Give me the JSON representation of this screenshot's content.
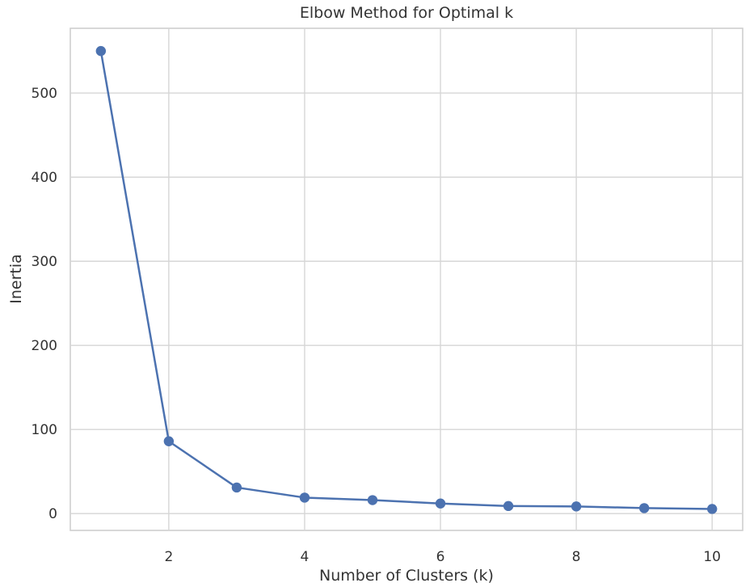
{
  "chart_data": {
    "type": "line",
    "title": "Elbow Method for Optimal k",
    "xlabel": "Number of Clusters (k)",
    "ylabel": "Inertia",
    "x": [
      1,
      2,
      3,
      4,
      5,
      6,
      7,
      8,
      9,
      10
    ],
    "series": [
      {
        "values": [
          550,
          86,
          31,
          19,
          16,
          12,
          9,
          8.5,
          6.5,
          5.5
        ],
        "color": "#4c72b0",
        "marker": "circle"
      }
    ],
    "xlim": [
      0.55,
      10.45
    ],
    "ylim": [
      -20,
      577
    ],
    "xticks": [
      2,
      4,
      6,
      8,
      10
    ],
    "yticks": [
      0,
      100,
      200,
      300,
      400,
      500
    ],
    "grid": true,
    "legend": "none"
  }
}
